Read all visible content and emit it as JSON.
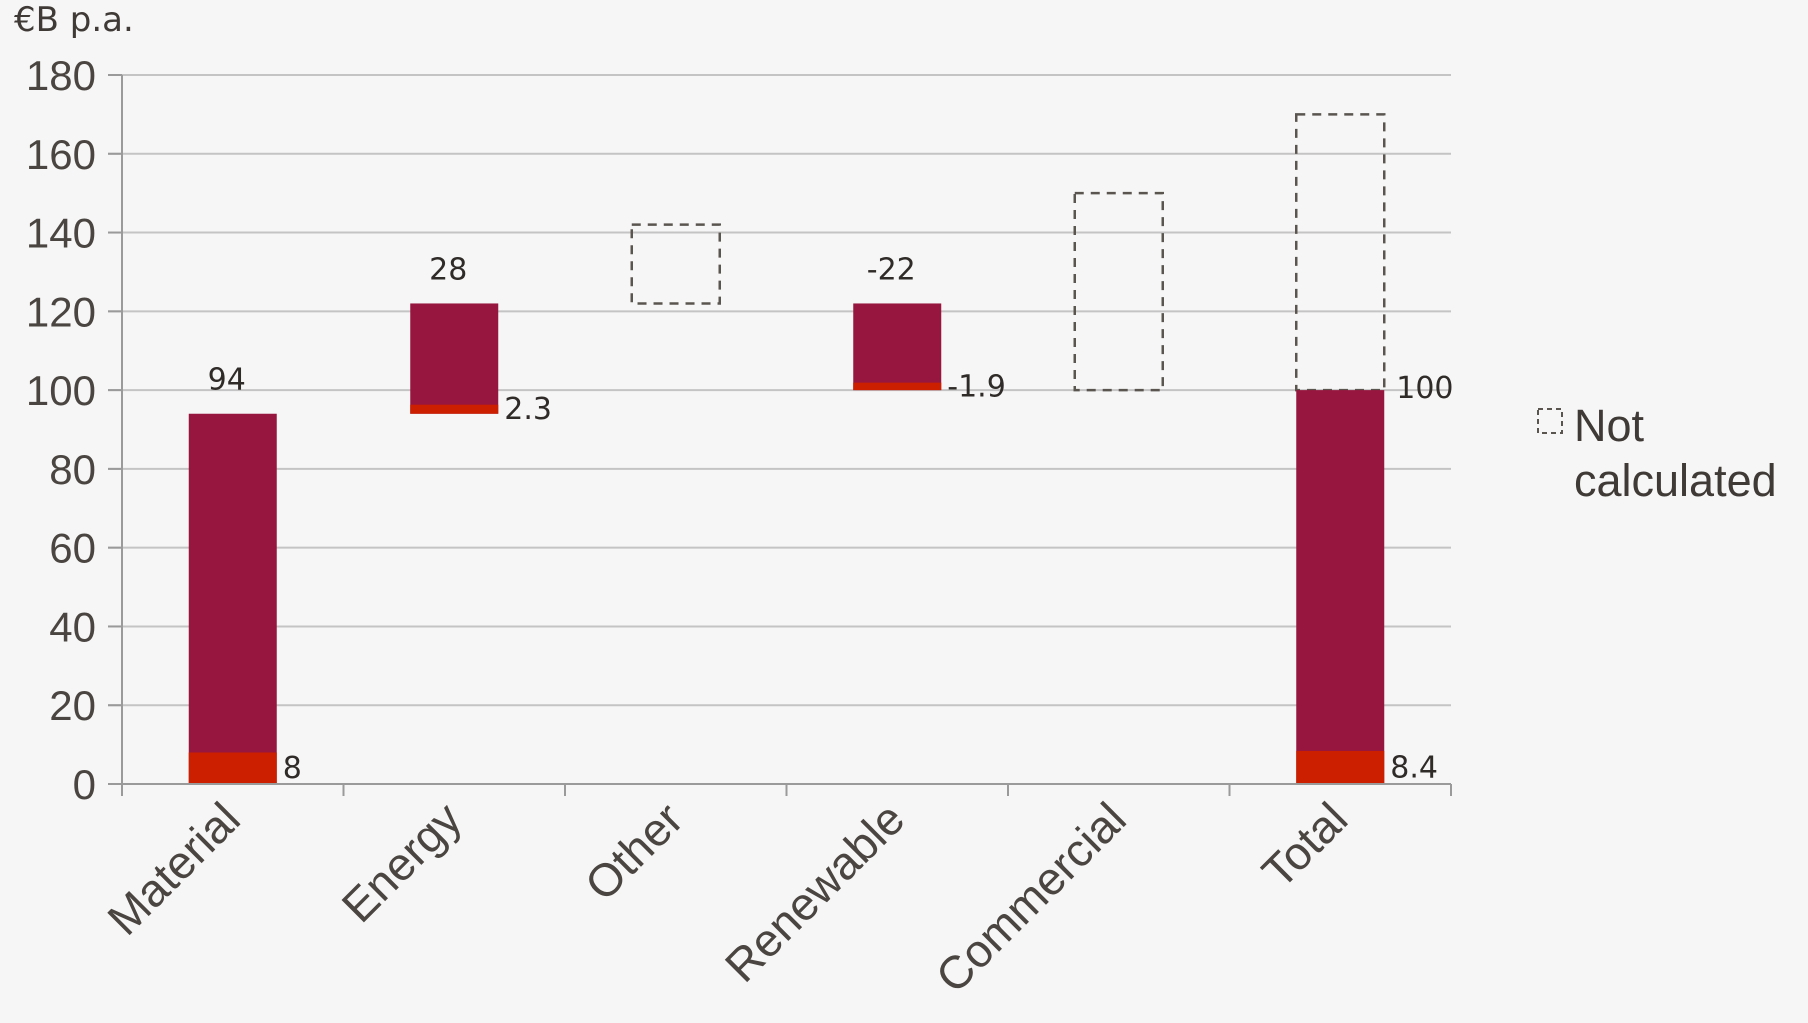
{
  "chart_data": {
    "type": "bar",
    "subtype": "waterfall",
    "unit_label": "€B p.a.",
    "categories": [
      "Material",
      "Energy",
      "Other",
      "Renewable",
      "Commercial",
      "Total"
    ],
    "ylim": [
      0,
      180
    ],
    "yticks": [
      0,
      20,
      40,
      60,
      80,
      100,
      120,
      140,
      160,
      180
    ],
    "grid": true,
    "colors": {
      "main": "#96163f",
      "sub": "#cc1f00",
      "grid": "#c4c4c4",
      "axis": "#9a9a9a",
      "dashed": "#5a554f"
    },
    "bars": [
      {
        "category": "Material",
        "bottom": 0,
        "top": 94,
        "label": "94",
        "sub_value": 8,
        "sub_label": "8"
      },
      {
        "category": "Energy",
        "bottom": 94,
        "top": 122,
        "label": "28",
        "sub_value": 2.3,
        "sub_label": "2.3"
      },
      {
        "category": "Renewable",
        "bottom": 100,
        "top": 122,
        "label": "-22",
        "sub_value": 1.9,
        "sub_label": "-1.9"
      },
      {
        "category": "Total",
        "bottom": 0,
        "top": 100,
        "label": "100",
        "sub_value": 8.4,
        "sub_label": "8.4"
      }
    ],
    "not_calculated": [
      {
        "category": "Other",
        "bottom": 122,
        "top": 142
      },
      {
        "category": "Commercial",
        "bottom": 100,
        "top": 150
      },
      {
        "category": "Total",
        "bottom": 100,
        "top": 170
      }
    ],
    "legend": {
      "placement": "right",
      "label_line1": "Not",
      "label_line2": "calculated"
    }
  }
}
